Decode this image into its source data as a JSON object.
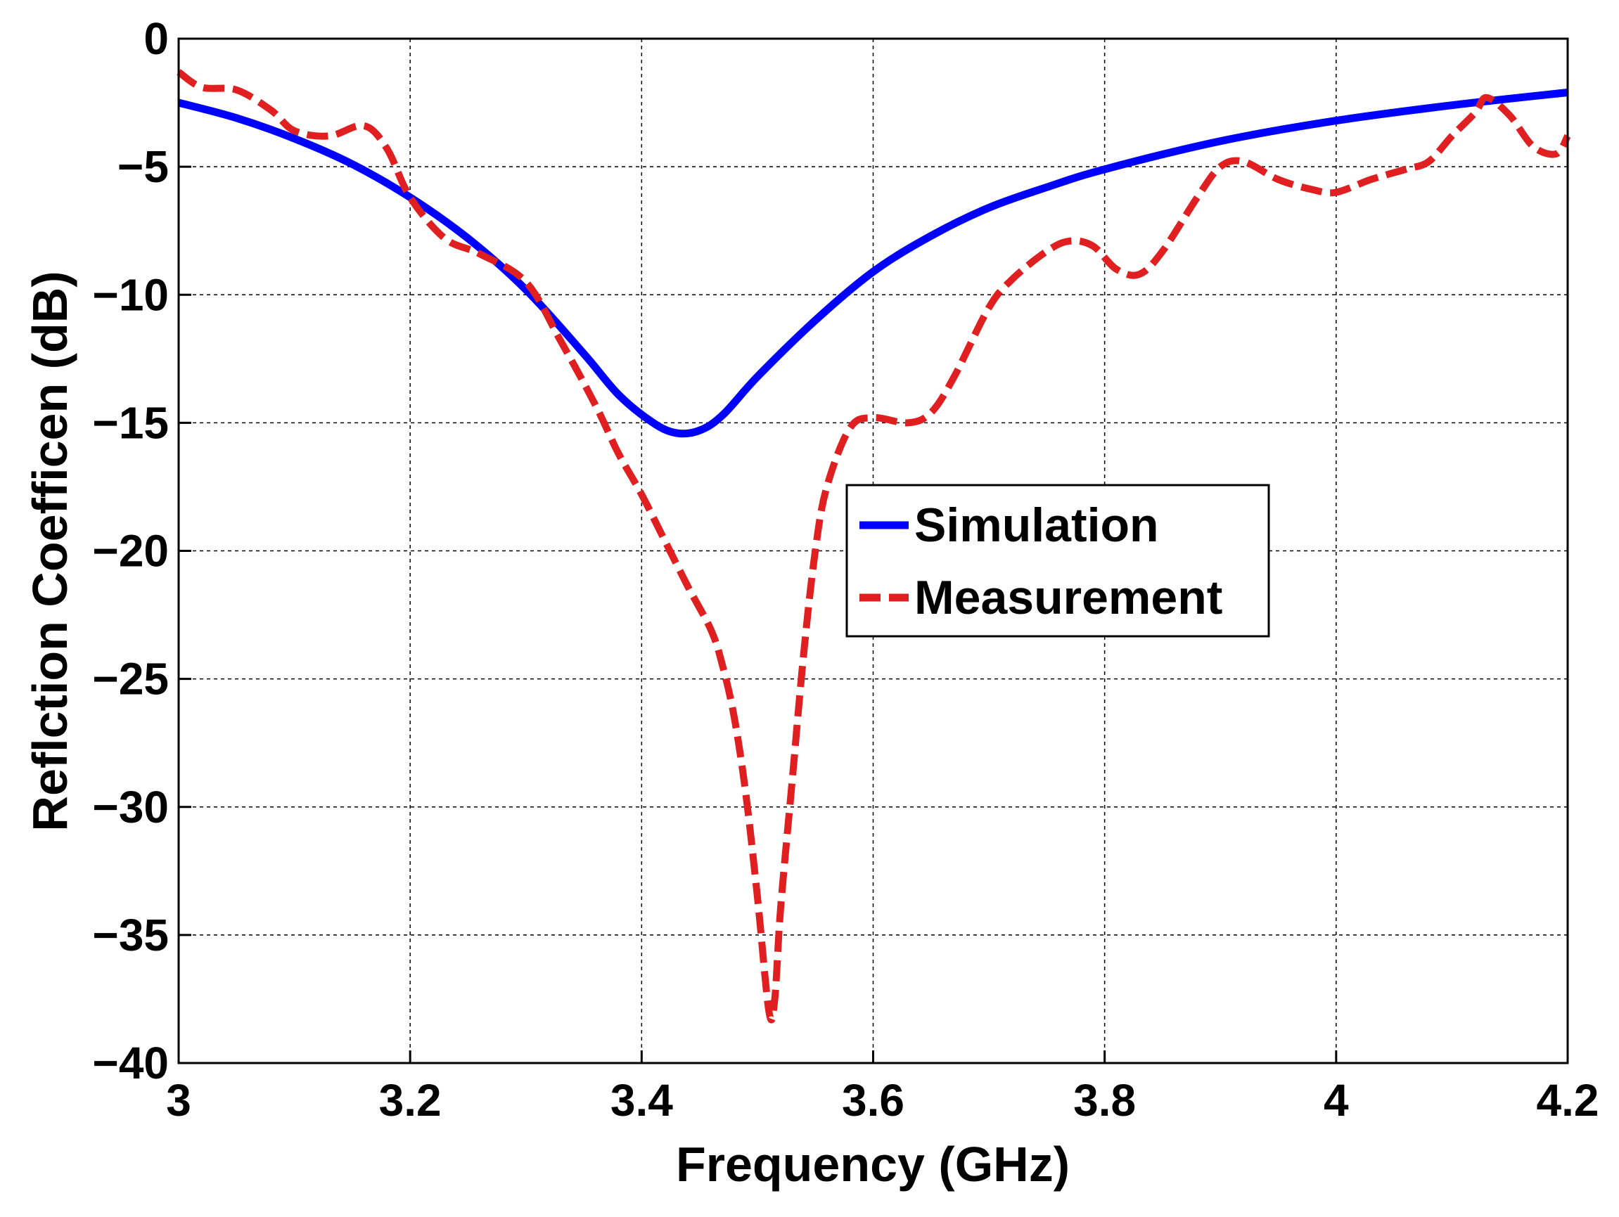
{
  "chart_data": {
    "type": "line",
    "title": "",
    "xlabel": "Frequency (GHz)",
    "ylabel": "Reflction Coefficen (dB)",
    "xlim": [
      3,
      4.2
    ],
    "ylim": [
      -40,
      0
    ],
    "xticks": [
      3,
      3.2,
      3.4,
      3.6,
      3.8,
      4,
      4.2
    ],
    "xtick_labels": [
      "3",
      "3.2",
      "3.4",
      "3.6",
      "3.8",
      "4",
      "4.2"
    ],
    "yticks": [
      0,
      -5,
      -10,
      -15,
      -20,
      -25,
      -30,
      -35,
      -40
    ],
    "ytick_labels": [
      "0",
      "−5",
      "−10",
      "−15",
      "−20",
      "−25",
      "−30",
      "−35",
      "−40"
    ],
    "grid": true,
    "legend_position": "center-right",
    "series": [
      {
        "name": "Simulation",
        "color": "#0000ff",
        "style": "solid",
        "x": [
          3.0,
          3.05,
          3.1,
          3.15,
          3.2,
          3.25,
          3.3,
          3.35,
          3.38,
          3.41,
          3.43,
          3.45,
          3.47,
          3.5,
          3.55,
          3.6,
          3.65,
          3.7,
          3.75,
          3.8,
          3.9,
          4.0,
          4.1,
          4.2
        ],
        "y": [
          -2.5,
          -3.1,
          -3.9,
          -4.9,
          -6.2,
          -7.8,
          -9.8,
          -12.3,
          -13.9,
          -15.0,
          -15.4,
          -15.3,
          -14.7,
          -13.2,
          -11.0,
          -9.1,
          -7.7,
          -6.6,
          -5.8,
          -5.1,
          -4.0,
          -3.2,
          -2.6,
          -2.1
        ]
      },
      {
        "name": "Measurement",
        "color": "#e02020",
        "style": "dashed",
        "x": [
          3.0,
          3.02,
          3.05,
          3.08,
          3.1,
          3.13,
          3.16,
          3.18,
          3.2,
          3.23,
          3.26,
          3.3,
          3.33,
          3.36,
          3.38,
          3.4,
          3.42,
          3.44,
          3.46,
          3.47,
          3.48,
          3.49,
          3.5,
          3.51,
          3.515,
          3.52,
          3.53,
          3.54,
          3.55,
          3.56,
          3.58,
          3.6,
          3.63,
          3.65,
          3.67,
          3.7,
          3.72,
          3.75,
          3.77,
          3.79,
          3.81,
          3.83,
          3.85,
          3.88,
          3.9,
          3.92,
          3.95,
          3.98,
          4.0,
          4.03,
          4.06,
          4.08,
          4.1,
          4.12,
          4.13,
          4.15,
          4.17,
          4.19,
          4.2
        ],
        "y": [
          -1.3,
          -1.9,
          -2.0,
          -2.8,
          -3.6,
          -3.8,
          -3.4,
          -4.3,
          -6.2,
          -7.8,
          -8.4,
          -9.5,
          -11.8,
          -14.3,
          -16.2,
          -17.8,
          -19.6,
          -21.4,
          -23.1,
          -24.5,
          -26.5,
          -29.5,
          -33.5,
          -38.0,
          -37.5,
          -34.0,
          -29.0,
          -24.0,
          -20.0,
          -17.5,
          -15.2,
          -14.8,
          -15.0,
          -14.6,
          -13.2,
          -10.5,
          -9.4,
          -8.3,
          -7.9,
          -8.1,
          -9.0,
          -9.2,
          -8.3,
          -6.2,
          -5.0,
          -4.8,
          -5.5,
          -5.9,
          -6.0,
          -5.5,
          -5.1,
          -4.8,
          -3.8,
          -2.9,
          -2.3,
          -3.0,
          -4.2,
          -4.5,
          -3.8
        ]
      }
    ]
  }
}
